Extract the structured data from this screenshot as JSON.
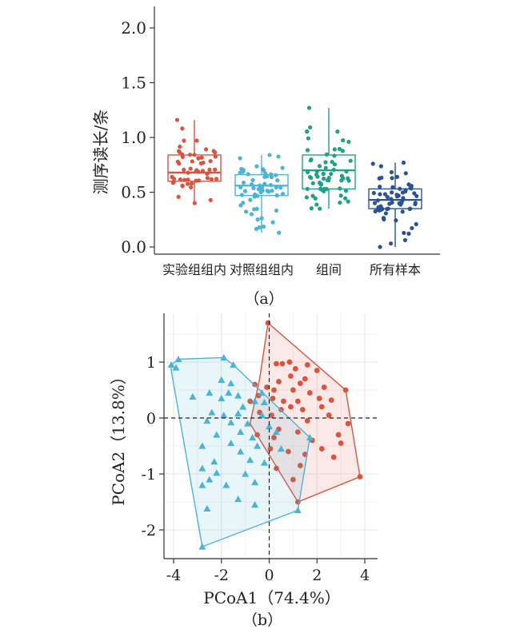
{
  "chart_data": [
    {
      "type": "box",
      "panel_label": "（a）",
      "ylabel": "测序读长/条",
      "ylim": [
        0,
        2.2
      ],
      "yticks": [
        "0.0",
        "0.5",
        "1.0",
        "1.5",
        "2.0"
      ],
      "categories": [
        "实验组组内",
        "对照组组内",
        "组间",
        "所有样本"
      ],
      "colors": [
        "#d9533f",
        "#4bb3d4",
        "#1fa187",
        "#2b5392"
      ],
      "boxes": [
        {
          "q1": 0.6,
          "median": 0.68,
          "q3": 0.84,
          "whisker_low": 0.4,
          "whisker_high": 1.16,
          "n_points": 55
        },
        {
          "q1": 0.47,
          "median": 0.56,
          "q3": 0.66,
          "whisker_low": 0.13,
          "whisker_high": 0.84,
          "n_points": 60
        },
        {
          "q1": 0.53,
          "median": 0.7,
          "q3": 0.84,
          "whisker_low": 0.35,
          "whisker_high": 1.27,
          "n_points": 65
        },
        {
          "q1": 0.35,
          "median": 0.43,
          "q3": 0.53,
          "whisker_low": 0.0,
          "whisker_high": 0.77,
          "n_points": 65
        }
      ]
    },
    {
      "type": "scatter",
      "panel_label": "（b）",
      "xlabel": "PCoA1（74.4%）",
      "ylabel": "PCoA2（13.8%）",
      "xlim": [
        -4.5,
        4.3
      ],
      "ylim": [
        -2.45,
        1.75
      ],
      "xticks": [
        -4,
        -2,
        0,
        2,
        4
      ],
      "yticks": [
        -2,
        -1,
        0,
        1
      ],
      "series": [
        {
          "color": "#d9533f",
          "marker": "circle",
          "hull": [
            [
              -0.05,
              1.7
            ],
            [
              1.3,
              1.2
            ],
            [
              3.2,
              0.5
            ],
            [
              3.8,
              -1.05
            ],
            [
              1.2,
              -1.5
            ],
            [
              -0.8,
              -0.1
            ],
            [
              -0.4,
              0.7
            ]
          ],
          "points": [
            [
              -0.05,
              1.7
            ],
            [
              0.3,
              0.97
            ],
            [
              0.55,
              0.97
            ],
            [
              0.85,
              1.0
            ],
            [
              1.1,
              0.88
            ],
            [
              1.6,
              0.95
            ],
            [
              2.0,
              0.85
            ],
            [
              0.9,
              0.75
            ],
            [
              1.5,
              0.7
            ],
            [
              0.4,
              0.65
            ],
            [
              -0.1,
              0.55
            ],
            [
              0.2,
              0.5
            ],
            [
              1.0,
              0.5
            ],
            [
              1.3,
              0.62
            ],
            [
              2.3,
              0.55
            ],
            [
              3.2,
              0.5
            ],
            [
              -0.6,
              0.6
            ],
            [
              -0.45,
              0.4
            ],
            [
              0.15,
              0.35
            ],
            [
              0.6,
              0.3
            ],
            [
              1.2,
              0.3
            ],
            [
              1.7,
              0.45
            ],
            [
              2.1,
              0.35
            ],
            [
              2.6,
              0.32
            ],
            [
              0.5,
              0.15
            ],
            [
              0.9,
              0.2
            ],
            [
              1.4,
              0.15
            ],
            [
              2.2,
              0.2
            ],
            [
              -0.8,
              0.3
            ],
            [
              -0.4,
              0.1
            ],
            [
              0.1,
              0.05
            ],
            [
              2.5,
              0.05
            ],
            [
              1.6,
              -0.05
            ],
            [
              3.3,
              -0.1
            ],
            [
              0.4,
              -0.2
            ],
            [
              1.2,
              -0.25
            ],
            [
              2.9,
              -0.3
            ],
            [
              -0.5,
              -0.3
            ],
            [
              0.2,
              -0.35
            ],
            [
              1.8,
              -0.4
            ],
            [
              3.0,
              -0.45
            ],
            [
              2.2,
              -0.55
            ],
            [
              0.05,
              -0.55
            ],
            [
              0.8,
              -0.6
            ],
            [
              1.5,
              -0.65
            ],
            [
              2.7,
              -0.7
            ],
            [
              0.3,
              -0.9
            ],
            [
              1.3,
              -0.85
            ],
            [
              1.0,
              -1.1
            ],
            [
              1.2,
              -1.5
            ],
            [
              3.8,
              -1.05
            ]
          ]
        },
        {
          "color": "#4bb3d4",
          "marker": "triangle",
          "hull": [
            [
              -4.1,
              0.95
            ],
            [
              -3.8,
              1.05
            ],
            [
              -1.9,
              1.08
            ],
            [
              -1.5,
              0.95
            ],
            [
              1.7,
              -0.35
            ],
            [
              1.2,
              -1.65
            ],
            [
              -2.8,
              -2.3
            ],
            [
              -4.1,
              0.85
            ]
          ],
          "points": [
            [
              -4.1,
              0.95
            ],
            [
              -3.8,
              1.05
            ],
            [
              -1.9,
              1.08
            ],
            [
              -1.5,
              0.95
            ],
            [
              -3.9,
              0.9
            ],
            [
              -2.0,
              0.68
            ],
            [
              -1.6,
              0.62
            ],
            [
              -2.5,
              0.45
            ],
            [
              -1.7,
              0.45
            ],
            [
              -1.3,
              0.4
            ],
            [
              -3.2,
              0.38
            ],
            [
              -0.3,
              0.45
            ],
            [
              -0.6,
              0.3
            ],
            [
              -0.2,
              0.28
            ],
            [
              -2.0,
              0.35
            ],
            [
              -1.1,
              0.2
            ],
            [
              -2.4,
              0.1
            ],
            [
              -1.9,
              0.05
            ],
            [
              -1.3,
              0.08
            ],
            [
              -0.3,
              0.05
            ],
            [
              -2.6,
              -0.05
            ],
            [
              -1.6,
              -0.08
            ],
            [
              -0.9,
              -0.1
            ],
            [
              0.0,
              -0.15
            ],
            [
              0.3,
              -0.25
            ],
            [
              -2.2,
              -0.3
            ],
            [
              -1.2,
              -0.25
            ],
            [
              -0.7,
              -0.35
            ],
            [
              1.7,
              -0.35
            ],
            [
              -1.6,
              -0.45
            ],
            [
              -2.8,
              -0.5
            ],
            [
              -0.5,
              -0.5
            ],
            [
              0.5,
              -0.55
            ],
            [
              -1.2,
              -0.6
            ],
            [
              -0.8,
              -0.75
            ],
            [
              -2.3,
              -0.78
            ],
            [
              -0.2,
              -0.8
            ],
            [
              -2.8,
              -0.9
            ],
            [
              -2.2,
              -0.98
            ],
            [
              -1.0,
              -1.0
            ],
            [
              -2.5,
              -1.1
            ],
            [
              -0.6,
              -1.15
            ],
            [
              -1.8,
              -1.2
            ],
            [
              -2.8,
              -1.2
            ],
            [
              -1.3,
              -1.45
            ],
            [
              -0.6,
              -1.55
            ],
            [
              1.2,
              -1.65
            ],
            [
              -2.6,
              -1.62
            ],
            [
              -2.8,
              -2.3
            ]
          ]
        }
      ]
    }
  ]
}
